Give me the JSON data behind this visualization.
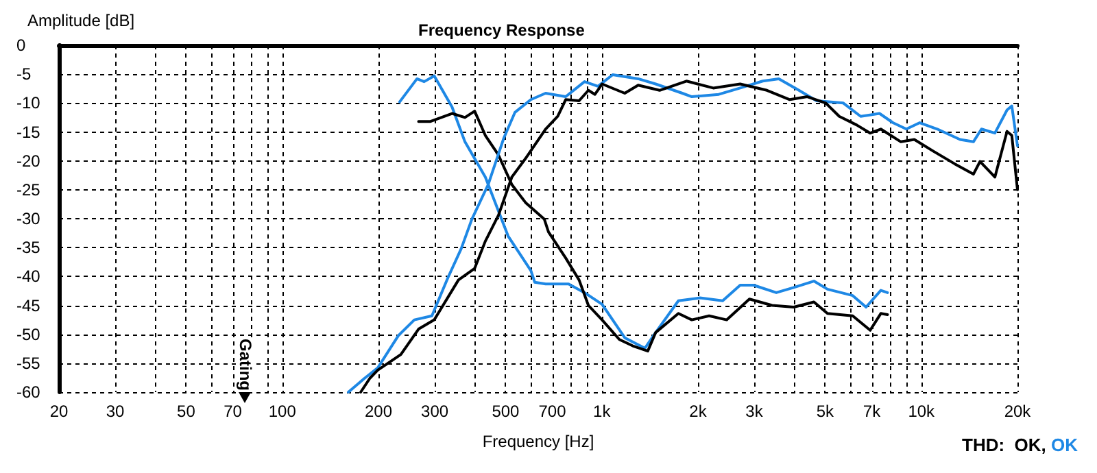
{
  "chart_data": {
    "type": "line",
    "title": "Frequency Response",
    "xlabel": "Frequency [Hz]",
    "ylabel": "Amplitude [dB]",
    "log": "x",
    "grid": true,
    "marker": "none",
    "line_style": "solid",
    "xlim": [
      20,
      20000
    ],
    "ylim": [
      -60,
      0
    ],
    "xticks": [
      20,
      30,
      {
        "value": 40,
        "label": null
      },
      50,
      {
        "value": 60,
        "label": null
      },
      70,
      {
        "value": 80,
        "label": null
      },
      {
        "value": 90,
        "label": null
      },
      100,
      200,
      300,
      {
        "value": 400,
        "label": null
      },
      500,
      {
        "value": 600,
        "label": null
      },
      700,
      {
        "value": 800,
        "label": null
      },
      {
        "value": 900,
        "label": null
      },
      {
        "value": 1000,
        "label": "1k"
      },
      {
        "value": 2000,
        "label": "2k"
      },
      {
        "value": 3000,
        "label": "3k"
      },
      {
        "value": 4000,
        "label": null
      },
      {
        "value": 5000,
        "label": "5k"
      },
      {
        "value": 6000,
        "label": null
      },
      {
        "value": 7000,
        "label": "7k"
      },
      {
        "value": 8000,
        "label": null
      },
      {
        "value": 9000,
        "label": null
      },
      {
        "value": 10000,
        "label": "10k"
      },
      {
        "value": 20000,
        "label": "20k"
      }
    ],
    "yticks": [
      -60,
      -55,
      -50,
      -45,
      -40,
      -35,
      -30,
      -25,
      -20,
      -15,
      -10,
      -5,
      0
    ],
    "series": [
      {
        "color": "#1e88e5",
        "x": [
          233,
          264,
          278,
          299,
          340,
          373,
          432,
          509,
          600,
          617,
          667,
          681,
          787,
          883,
          1002,
          1180,
          1365,
          1474,
          1737,
          2029,
          2390,
          2711,
          2986,
          3517,
          3990,
          4613,
          5085,
          6100,
          6717,
          7470,
          7840
        ],
        "values": [
          -9.8,
          -5.8,
          -6.3,
          -5.3,
          -10.7,
          -16.7,
          -22.8,
          -33,
          -39,
          -41,
          -41.3,
          -41.3,
          -41.3,
          -42.8,
          -44.8,
          -50.6,
          -52.4,
          -49.7,
          -44.2,
          -43.7,
          -44.2,
          -41.5,
          -41.5,
          -42.8,
          -41.9,
          -40.8,
          -42.2,
          -43.3,
          -45.3,
          -42.4,
          -42.8
        ]
      },
      {
        "color": "#000000",
        "x": [
          267,
          290,
          340,
          373,
          400,
          432,
          475,
          523,
          577,
          661,
          681,
          771,
          849,
          908,
          1002,
          1135,
          1250,
          1393,
          1474,
          1737,
          1913,
          2168,
          2461,
          2898,
          3413,
          3990,
          4613,
          5085,
          6100,
          6920,
          7470,
          7840
        ],
        "values": [
          -13.2,
          -13.2,
          -11.8,
          -12.5,
          -11.4,
          -15.6,
          -19,
          -24.1,
          -27.2,
          -30.1,
          -32.3,
          -36.8,
          -40.6,
          -45,
          -47.5,
          -50.9,
          -52,
          -52.9,
          -49.7,
          -46.4,
          -47.5,
          -46.8,
          -47.5,
          -43.9,
          -45,
          -45.3,
          -44.4,
          -46.4,
          -46.8,
          -49.3,
          -46.4,
          -46.6
        ]
      },
      {
        "color": "#1e88e5",
        "x": [
          161,
          181,
          199,
          231,
          259,
          294,
          330,
          363,
          392,
          441,
          494,
          535,
          600,
          667,
          771,
          883,
          973,
          1082,
          1300,
          1474,
          1787,
          1913,
          2323,
          2711,
          3190,
          3582,
          4141,
          4700,
          5700,
          6460,
          7400,
          8150,
          8980,
          9890,
          11220,
          13220,
          14560,
          15430,
          17000,
          18550,
          19200,
          20000
        ],
        "values": [
          -60,
          -57.6,
          -55.8,
          -50.2,
          -47.5,
          -46.8,
          -40.2,
          -35.2,
          -30.1,
          -24.1,
          -16,
          -11.6,
          -9.4,
          -8.3,
          -8.9,
          -6.3,
          -7.1,
          -5.1,
          -5.8,
          -6.7,
          -8.3,
          -8.9,
          -8.5,
          -7.4,
          -6.2,
          -5.8,
          -7.8,
          -9.6,
          -10,
          -12.3,
          -11.8,
          -13.4,
          -14.5,
          -13.4,
          -14.5,
          -16.3,
          -16.7,
          -14.5,
          -15.2,
          -11.2,
          -10.5,
          -17.4
        ]
      },
      {
        "color": "#000000",
        "x": [
          176,
          188,
          199,
          213,
          235,
          267,
          299,
          356,
          400,
          432,
          475,
          523,
          577,
          667,
          728,
          771,
          849,
          908,
          952,
          1002,
          1180,
          1300,
          1517,
          1841,
          2233,
          2711,
          3289,
          3875,
          4397,
          5024,
          5536,
          6280,
          6920,
          7470,
          8630,
          9510,
          10890,
          12710,
          14560,
          15270,
          17000,
          18550,
          19200,
          20000
        ],
        "values": [
          -60,
          -57.6,
          -56.2,
          -55.1,
          -53.5,
          -49.1,
          -47.5,
          -40.6,
          -38.6,
          -33.9,
          -29.4,
          -22.8,
          -19.6,
          -14.5,
          -12.3,
          -9.4,
          -9.6,
          -7.8,
          -8.5,
          -6.7,
          -8.3,
          -6.9,
          -7.8,
          -6.2,
          -7.4,
          -6.7,
          -7.8,
          -9.4,
          -8.9,
          -10,
          -12.3,
          -13.8,
          -15.2,
          -14.5,
          -16.7,
          -16.3,
          -18.3,
          -20.5,
          -22.3,
          -20.1,
          -22.8,
          -14.9,
          -15.6,
          -25
        ]
      }
    ],
    "annotations": [
      "Gating",
      "THD:  OK, OK"
    ]
  }
}
